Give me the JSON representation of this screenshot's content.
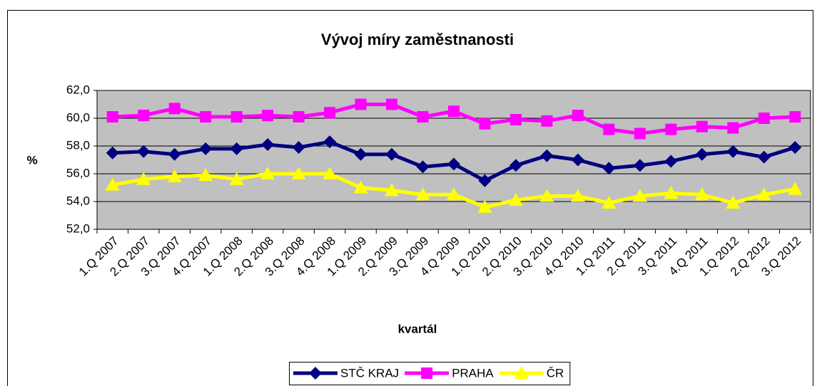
{
  "chart_data": {
    "type": "line",
    "title": "Vývoj míry zaměstnanosti",
    "ylabel": "%",
    "xlabel": "kvartál",
    "categories": [
      "1.Q 2007",
      "2.Q 2007",
      "3.Q 2007",
      "4.Q 2007",
      "1.Q 2008",
      "2.Q 2008",
      "3.Q 2008",
      "4.Q 2008",
      "1.Q 2009",
      "2.Q 2009",
      "3.Q 2009",
      "4.Q 2009",
      "1.Q 2010",
      "2.Q 2010",
      "3.Q 2010",
      "4.Q 2010",
      "1.Q 2011",
      "2.Q 2011",
      "3.Q 2011",
      "4.Q 2011",
      "1.Q 2012",
      "2.Q 2012",
      "3.Q 2012"
    ],
    "series": [
      {
        "name": "STČ KRAJ",
        "color": "#000080",
        "marker": "diamond",
        "values": [
          57.5,
          57.6,
          57.4,
          57.8,
          57.8,
          58.1,
          57.9,
          58.3,
          57.4,
          57.4,
          56.5,
          56.7,
          55.5,
          56.6,
          57.3,
          57.0,
          56.4,
          56.6,
          56.9,
          57.4,
          57.6,
          57.2,
          57.9
        ]
      },
      {
        "name": "PRAHA",
        "color": "#ff00ff",
        "marker": "square",
        "values": [
          60.1,
          60.2,
          60.7,
          60.1,
          60.1,
          60.2,
          60.1,
          60.4,
          61.0,
          61.0,
          60.1,
          60.5,
          59.6,
          59.9,
          59.8,
          60.2,
          59.2,
          58.9,
          59.2,
          59.4,
          59.3,
          60.0,
          60.1
        ]
      },
      {
        "name": "ČR",
        "color": "#ffff00",
        "marker": "triangle",
        "values": [
          55.2,
          55.6,
          55.8,
          55.9,
          55.6,
          56.0,
          56.0,
          56.0,
          55.0,
          54.8,
          54.5,
          54.5,
          53.6,
          54.1,
          54.4,
          54.4,
          53.9,
          54.4,
          54.6,
          54.5,
          53.9,
          54.5,
          54.9
        ]
      }
    ],
    "ylim": [
      52,
      62
    ],
    "yticks": [
      {
        "value": 52,
        "label": "52,0"
      },
      {
        "value": 54,
        "label": "54,0"
      },
      {
        "value": 56,
        "label": "56,0"
      },
      {
        "value": 58,
        "label": "58,0"
      },
      {
        "value": 60,
        "label": "60,0"
      },
      {
        "value": 62,
        "label": "62,0"
      }
    ],
    "grid": true,
    "legend": "bottom",
    "plot_background": "#c0c0c0"
  }
}
